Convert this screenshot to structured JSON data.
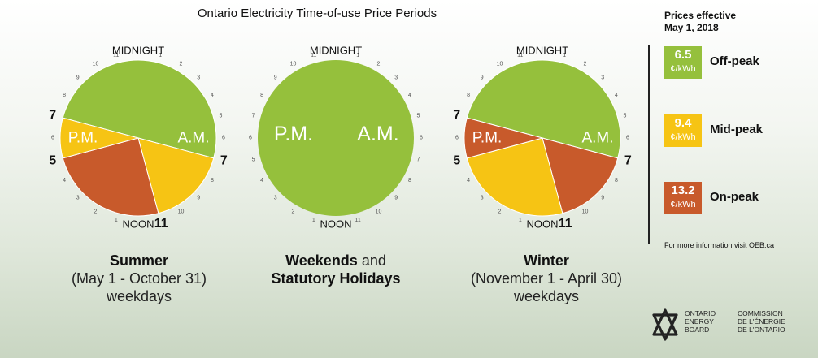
{
  "title": "Ontario Electricity Time-of-use Price Periods",
  "colors": {
    "off_peak": "#95c03c",
    "mid_peak": "#f6c414",
    "on_peak": "#c85a2b"
  },
  "clock_labels": {
    "midnight": "MIDNIGHT",
    "noon": "NOON",
    "pm": "P.M.",
    "am": "A.M."
  },
  "hour_numbers": [
    "1",
    "2",
    "3",
    "4",
    "5",
    "6",
    "7",
    "8",
    "9",
    "10",
    "11"
  ],
  "clocks": [
    {
      "id": "summer",
      "edge_labels": [
        {
          "hour": 19,
          "text": "7"
        },
        {
          "hour": 17,
          "text": "5"
        },
        {
          "hour": 7,
          "text": "7"
        },
        {
          "hour": 11,
          "text": "11"
        }
      ],
      "segments": [
        {
          "from": 19,
          "to": 31,
          "period": "off_peak"
        },
        {
          "from": 7,
          "to": 11,
          "period": "mid_peak"
        },
        {
          "from": 11,
          "to": 17,
          "period": "on_peak"
        },
        {
          "from": 17,
          "to": 19,
          "period": "mid_peak"
        }
      ],
      "caption": {
        "bold": "Summer",
        "line2": "(May 1 - October 31)",
        "line3": "weekdays"
      }
    },
    {
      "id": "weekends",
      "edge_labels": [],
      "segments": [
        {
          "from": 0,
          "to": 24,
          "period": "off_peak"
        }
      ],
      "caption": {
        "bold1": "Weekends",
        "and": " and",
        "bold2": "Statutory Holidays"
      }
    },
    {
      "id": "winter",
      "edge_labels": [
        {
          "hour": 19,
          "text": "7"
        },
        {
          "hour": 17,
          "text": "5"
        },
        {
          "hour": 7,
          "text": "7"
        },
        {
          "hour": 11,
          "text": "11"
        }
      ],
      "segments": [
        {
          "from": 19,
          "to": 31,
          "period": "off_peak"
        },
        {
          "from": 7,
          "to": 11,
          "period": "on_peak"
        },
        {
          "from": 11,
          "to": 17,
          "period": "mid_peak"
        },
        {
          "from": 17,
          "to": 19,
          "period": "on_peak"
        }
      ],
      "caption": {
        "bold": "Winter",
        "line2": "(November 1 - April 30)",
        "line3": "weekdays"
      }
    }
  ],
  "legend": {
    "header_line1": "Prices effective",
    "header_line2": "May 1, 2018",
    "unit": "¢/kWh",
    "items": [
      {
        "value": "6.5",
        "label": "Off-peak",
        "period": "off_peak"
      },
      {
        "value": "9.4",
        "label": "Mid-peak",
        "period": "mid_peak"
      },
      {
        "value": "13.2",
        "label": "On-peak",
        "period": "on_peak"
      }
    ],
    "more_info": "For more information visit OEB.ca"
  },
  "logo": {
    "en": [
      "ONTARIO",
      "ENERGY",
      "BOARD"
    ],
    "fr": [
      "COMMISSION",
      "DE L'ÉNERGIE",
      "DE L'ONTARIO"
    ]
  }
}
